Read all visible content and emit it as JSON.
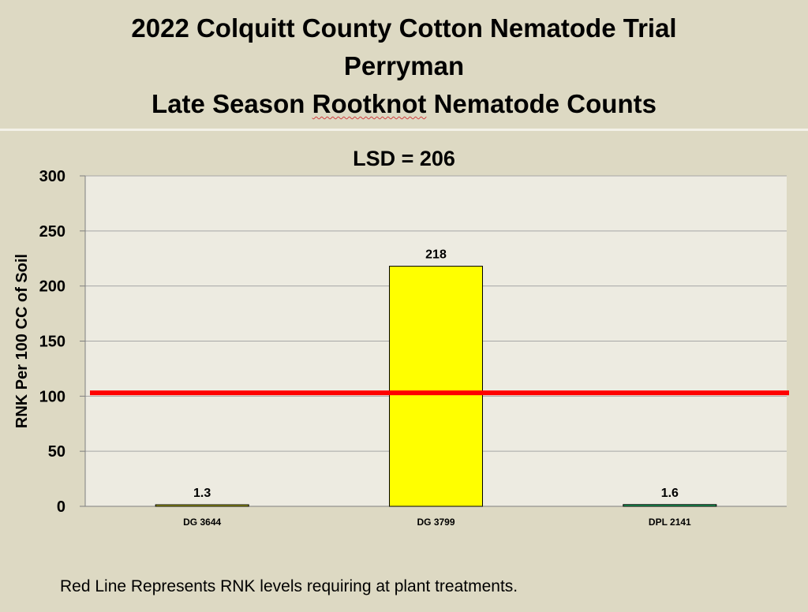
{
  "title": {
    "line1": "2022 Colquitt County Cotton Nematode Trial",
    "line2": "Perryman",
    "line3_pre": "Late Season ",
    "line3_word": "Rootknot",
    "line3_post": " Nematode Counts"
  },
  "footnote": "Red Line Represents RNK levels requiring at plant treatments.",
  "colors": {
    "background": "#ddd9c3",
    "plot_area": "#edebe1",
    "threshold_line": "#ff0000"
  },
  "chart_data": {
    "type": "bar",
    "title": "LSD = 206",
    "ylabel": "RNK Per  100 CC of Soil",
    "xlabel": "",
    "ylim": [
      0,
      300
    ],
    "yticks": [
      0,
      50,
      100,
      150,
      200,
      250,
      300
    ],
    "grid": true,
    "categories": [
      "DG 3644",
      "DG 3799",
      "DPL 2141"
    ],
    "values": [
      1.3,
      218,
      1.6
    ],
    "value_labels": [
      "1.3",
      "218",
      "1.6"
    ],
    "bar_colors": [
      "#c8c81e",
      "#ffff00",
      "#1eb464"
    ],
    "threshold": 103
  }
}
